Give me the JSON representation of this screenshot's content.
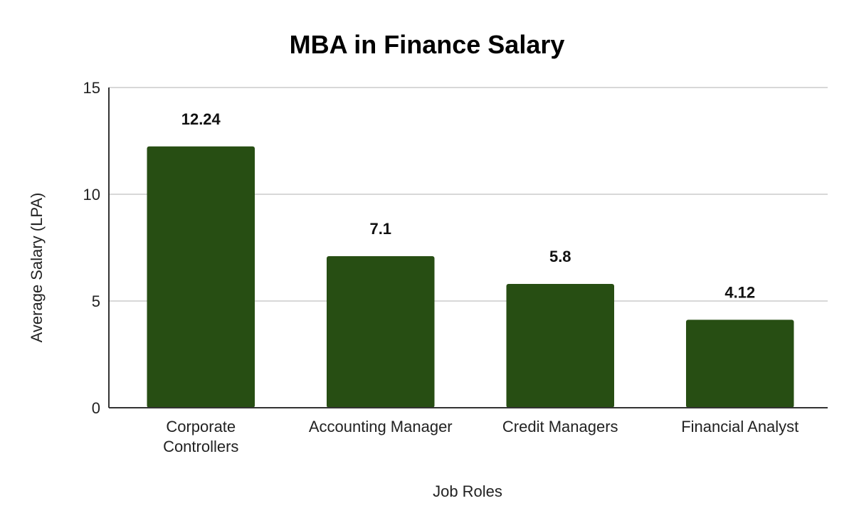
{
  "chart_data": {
    "type": "bar",
    "title": "MBA in Finance Salary",
    "xlabel": "Job Roles",
    "ylabel": "Average Salary (LPA)",
    "categories": [
      [
        "Corporate",
        "Controllers"
      ],
      [
        "Accounting Manager"
      ],
      [
        "Credit Managers"
      ],
      [
        "Financial Analyst"
      ]
    ],
    "values": [
      12.24,
      7.1,
      5.8,
      4.12
    ],
    "data_labels": [
      "12.24",
      "7.1",
      "5.8",
      "4.12"
    ],
    "ylim": [
      0,
      15
    ],
    "yticks": [
      0,
      5,
      10,
      15
    ],
    "ytick_labels": [
      "0",
      "5",
      "10",
      "15"
    ],
    "bar_color": "#274e13",
    "grid": true,
    "legend": "none"
  }
}
